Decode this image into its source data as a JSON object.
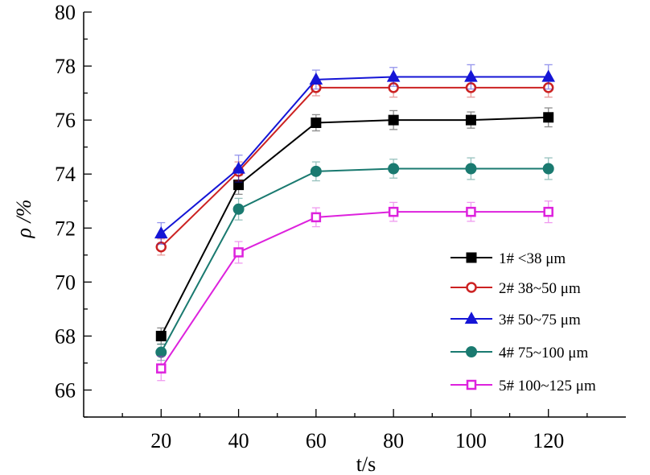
{
  "chart_data": {
    "type": "line",
    "xlabel": "t/s",
    "ylabel": "ρ /%",
    "xlim": [
      0,
      140
    ],
    "ylim": [
      65,
      80
    ],
    "x_ticks": [
      20,
      40,
      60,
      80,
      100,
      120
    ],
    "y_ticks": [
      66,
      68,
      70,
      72,
      74,
      76,
      78,
      80
    ],
    "legend_position": "right",
    "x": [
      20,
      40,
      60,
      80,
      100,
      120
    ],
    "series": [
      {
        "name": "1# <38 μm",
        "marker": "filled-square",
        "color": "#000000",
        "values": [
          68.0,
          73.6,
          75.9,
          76.0,
          76.0,
          76.1
        ],
        "errors": [
          0.3,
          0.35,
          0.3,
          0.35,
          0.3,
          0.35
        ]
      },
      {
        "name": "2# 38~50 μm",
        "marker": "open-circle",
        "color": "#cc2222",
        "values": [
          71.3,
          74.1,
          77.2,
          77.2,
          77.2,
          77.2
        ],
        "errors": [
          0.3,
          0.35,
          0.3,
          0.35,
          0.35,
          0.35
        ]
      },
      {
        "name": "3# 50~75 μm",
        "marker": "filled-triangle",
        "color": "#1515d6",
        "values": [
          71.8,
          74.2,
          77.5,
          77.6,
          77.6,
          77.6
        ],
        "errors": [
          0.4,
          0.5,
          0.35,
          0.35,
          0.45,
          0.45
        ]
      },
      {
        "name": "4# 75~100 μm",
        "marker": "filled-circle",
        "color": "#1a7a70",
        "values": [
          67.4,
          72.7,
          74.1,
          74.2,
          74.2,
          74.2
        ],
        "errors": [
          0.3,
          0.4,
          0.35,
          0.35,
          0.4,
          0.4
        ]
      },
      {
        "name": "5# 100~125 μm",
        "marker": "open-square",
        "color": "#dd22dd",
        "values": [
          66.8,
          71.1,
          72.4,
          72.6,
          72.6,
          72.6
        ],
        "errors": [
          0.45,
          0.4,
          0.35,
          0.35,
          0.35,
          0.4
        ]
      }
    ]
  }
}
